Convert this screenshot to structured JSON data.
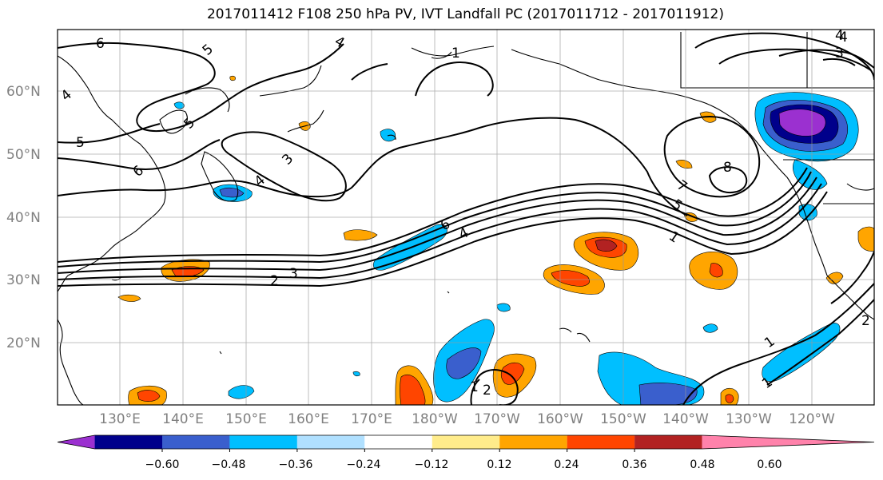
{
  "title": "2017011412 F108 250 hPa PV, IVT Landfall PC (2017011712 - 2017011912)",
  "lat_labels": [
    "60°N",
    "50°N",
    "40°N",
    "30°N",
    "20°N"
  ],
  "lon_labels": [
    "130°E",
    "140°E",
    "150°E",
    "160°E",
    "170°E",
    "180°W",
    "170°W",
    "160°W",
    "150°W",
    "140°W",
    "130°W",
    "120°W"
  ],
  "colorbar": {
    "colors": [
      "#9b30d0",
      "#00008b",
      "#3a5fcd",
      "#00bfff",
      "#b0e0ff",
      "#ffffff",
      "#ffec8b",
      "#ffa500",
      "#ff4500",
      "#b22222",
      "#ff82ab"
    ],
    "ticks": [
      "−0.60",
      "−0.48",
      "−0.36",
      "−0.24",
      "−0.12",
      "0.12",
      "0.24",
      "0.36",
      "0.48",
      "0.60"
    ]
  },
  "contour_labels": [
    "6",
    "5",
    "4",
    "4",
    "5",
    "3",
    "6",
    "4",
    "5",
    "7",
    "8",
    "5",
    "4",
    "1",
    "3",
    "6",
    "4",
    "3",
    "2",
    "1",
    "1",
    "2",
    "2",
    "1",
    "1",
    "4"
  ]
}
